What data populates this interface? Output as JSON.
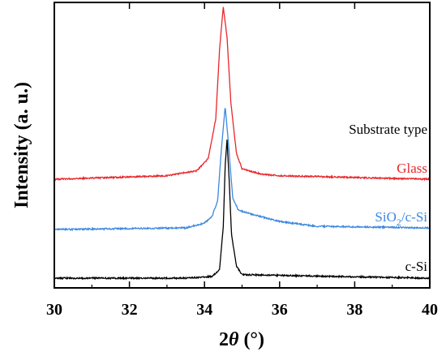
{
  "chart_data": {
    "type": "line",
    "title": "",
    "xlabel_prefix": "2",
    "xlabel_symbol": "θ",
    "xlabel_unit": "(°)",
    "ylabel": "Intensity (a. u.)",
    "xlim": [
      30,
      40
    ],
    "x_ticks": [
      "30",
      "32",
      "34",
      "36",
      "38",
      "40"
    ],
    "y_ticks_shown": false,
    "grid": false,
    "legend_header": "Substrate type",
    "series": [
      {
        "name": "Glass",
        "color": "#e8262a",
        "points": [
          [
            30.0,
            0.0
          ],
          [
            33.0,
            0.02
          ],
          [
            33.8,
            0.05
          ],
          [
            34.1,
            0.12
          ],
          [
            34.3,
            0.35
          ],
          [
            34.4,
            0.75
          ],
          [
            34.5,
            1.0
          ],
          [
            34.6,
            0.82
          ],
          [
            34.7,
            0.45
          ],
          [
            34.85,
            0.15
          ],
          [
            35.0,
            0.06
          ],
          [
            35.5,
            0.03
          ],
          [
            36.0,
            0.02
          ],
          [
            40.0,
            0.0
          ]
        ]
      },
      {
        "name_main": "SiO",
        "name_sub": "2",
        "name_tail": "/c-Si",
        "color": "#3c87e0",
        "points": [
          [
            30.0,
            0.0
          ],
          [
            33.5,
            0.01
          ],
          [
            34.0,
            0.04
          ],
          [
            34.2,
            0.08
          ],
          [
            34.35,
            0.18
          ],
          [
            34.45,
            0.5
          ],
          [
            34.55,
            0.77
          ],
          [
            34.65,
            0.5
          ],
          [
            34.75,
            0.2
          ],
          [
            34.9,
            0.12
          ],
          [
            35.5,
            0.08
          ],
          [
            36.0,
            0.05
          ],
          [
            37.0,
            0.02
          ],
          [
            40.0,
            0.01
          ]
        ]
      },
      {
        "name": "c-Si",
        "color": "#000000",
        "points": [
          [
            30.0,
            0.0
          ],
          [
            33.5,
            0.0
          ],
          [
            34.2,
            0.01
          ],
          [
            34.4,
            0.05
          ],
          [
            34.5,
            0.3
          ],
          [
            34.55,
            0.65
          ],
          [
            34.6,
            0.8
          ],
          [
            34.65,
            0.6
          ],
          [
            34.72,
            0.25
          ],
          [
            34.85,
            0.07
          ],
          [
            35.0,
            0.02
          ],
          [
            40.0,
            0.0
          ]
        ]
      }
    ]
  }
}
